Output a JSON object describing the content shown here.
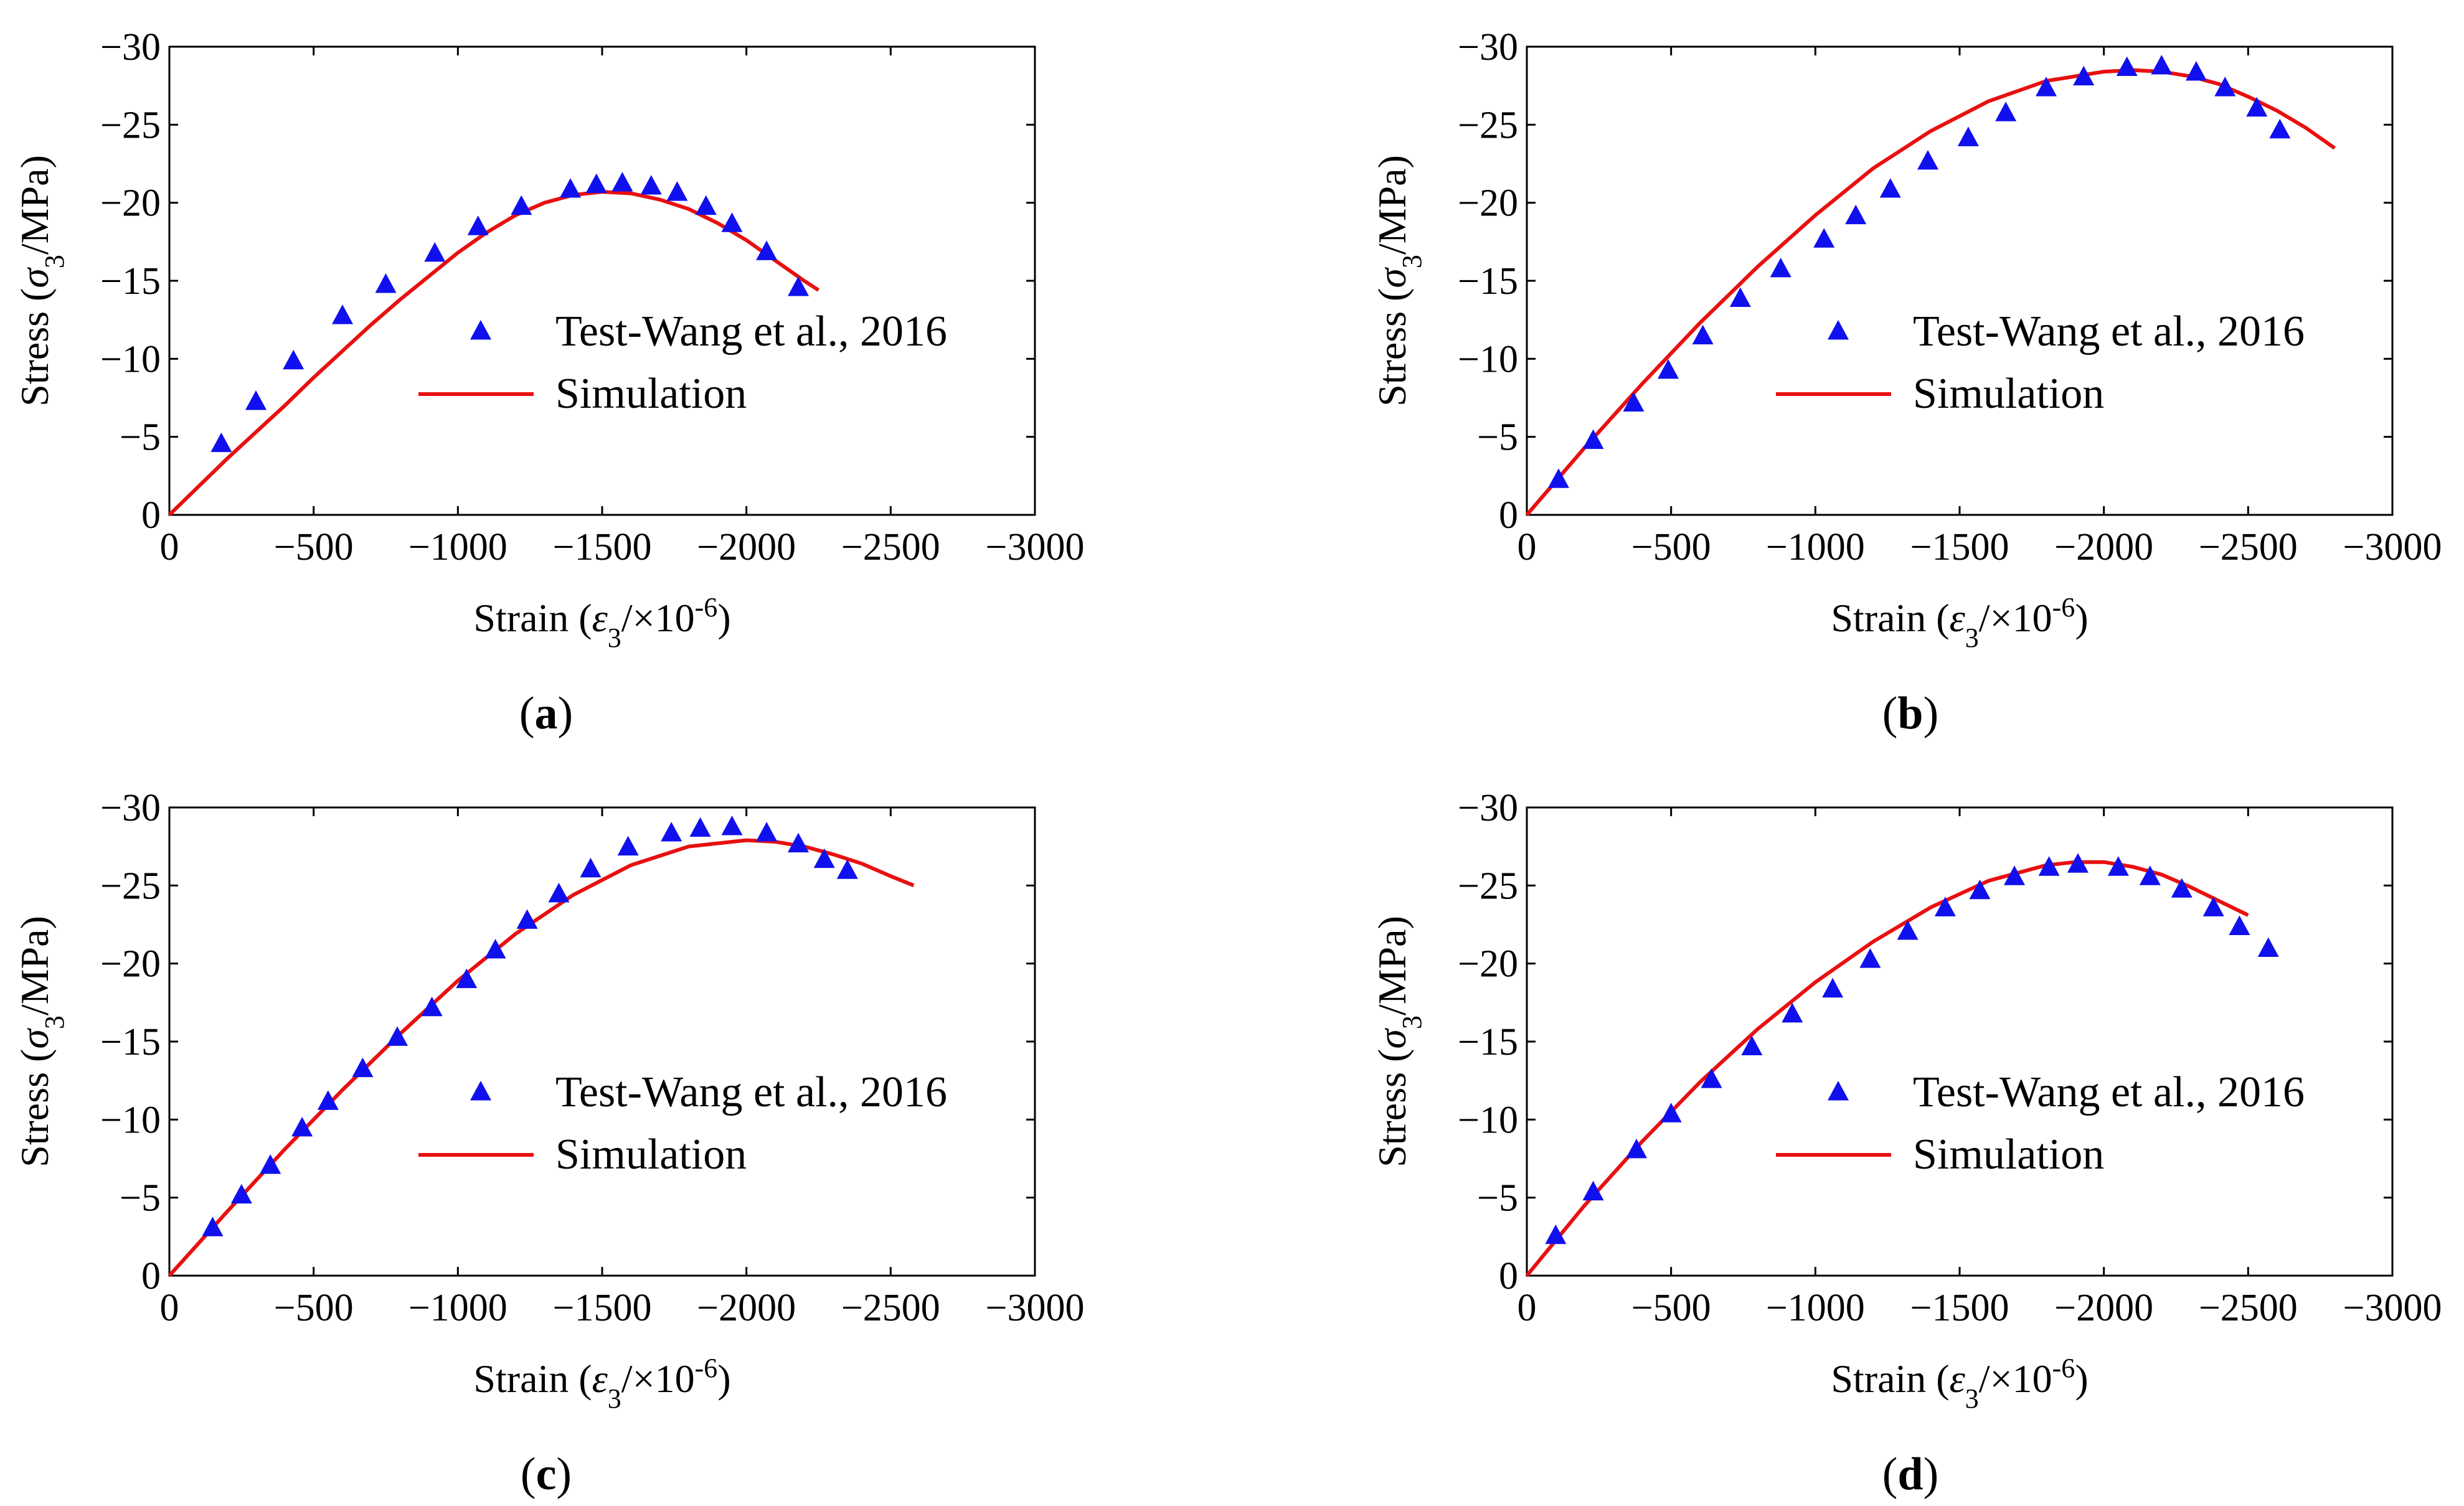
{
  "figure": {
    "legend_test_label": "Test-Wang et al., 2016",
    "legend_sim_label": "Simulation",
    "x_axis_title": "Strain (ε3/×10-6)",
    "y_axis_title": "Stress (σ3/MPa)",
    "colors": {
      "test": "#1010ee",
      "simulation": "#e81010",
      "axis": "#000000"
    }
  },
  "chart_data": [
    {
      "type": "scatter",
      "panel": "(a)",
      "panel_letter": "a",
      "xlabel": "Strain (ε3/×10-6)",
      "ylabel": "Stress (σ3/MPa)",
      "xlim": [
        0,
        -3000
      ],
      "ylim": [
        0,
        -30
      ],
      "xticks": [
        0,
        -500,
        -1000,
        -1500,
        -2000,
        -2500,
        -3000
      ],
      "yticks": [
        0,
        -5,
        -10,
        -15,
        -20,
        -25,
        -30
      ],
      "xtick_labels": [
        "0",
        "−500",
        "−1000",
        "−1500",
        "−2000",
        "−2500",
        "−3000"
      ],
      "ytick_labels": [
        "0",
        "−5",
        "−10",
        "−15",
        "−20",
        "−25",
        "−30"
      ],
      "legend": "lower-right",
      "series": [
        {
          "name": "Test-Wang et al., 2016",
          "marker": "triangle",
          "x": [
            -180,
            -300,
            -430,
            -600,
            -750,
            -920,
            -1070,
            -1220,
            -1390,
            -1480,
            -1570,
            -1670,
            -1760,
            -1860,
            -1950,
            -2070,
            -2180
          ],
          "y": [
            -4.6,
            -7.3,
            -9.9,
            -12.8,
            -14.8,
            -16.8,
            -18.5,
            -19.8,
            -20.9,
            -21.2,
            -21.3,
            -21.1,
            -20.7,
            -19.8,
            -18.7,
            -16.9,
            -14.6
          ]
        },
        {
          "name": "Simulation",
          "marker": "line",
          "x": [
            0,
            -100,
            -200,
            -300,
            -400,
            -500,
            -600,
            -700,
            -800,
            -900,
            -1000,
            -1100,
            -1200,
            -1300,
            -1400,
            -1500,
            -1600,
            -1700,
            -1800,
            -1900,
            -2000,
            -2100,
            -2200,
            -2250
          ],
          "y": [
            0,
            -1.8,
            -3.6,
            -5.3,
            -7.0,
            -8.8,
            -10.5,
            -12.2,
            -13.8,
            -15.3,
            -16.8,
            -18.1,
            -19.2,
            -20.0,
            -20.5,
            -20.7,
            -20.6,
            -20.2,
            -19.6,
            -18.7,
            -17.6,
            -16.3,
            -15.0,
            -14.4
          ]
        }
      ]
    },
    {
      "type": "scatter",
      "panel": "(b)",
      "panel_letter": "b",
      "xlabel": "Strain (ε3/×10-6)",
      "ylabel": "Stress (σ3/MPa)",
      "xlim": [
        0,
        -3000
      ],
      "ylim": [
        0,
        -30
      ],
      "xticks": [
        0,
        -500,
        -1000,
        -1500,
        -2000,
        -2500,
        -3000
      ],
      "yticks": [
        0,
        -5,
        -10,
        -15,
        -20,
        -25,
        -30
      ],
      "xtick_labels": [
        "0",
        "−500",
        "−1000",
        "−1500",
        "−2000",
        "−2500",
        "−3000"
      ],
      "ytick_labels": [
        "0",
        "−5",
        "−10",
        "−15",
        "−20",
        "−25",
        "−30"
      ],
      "legend": "lower-right",
      "series": [
        {
          "name": "Test-Wang et al., 2016",
          "marker": "triangle",
          "x": [
            -110,
            -230,
            -370,
            -490,
            -610,
            -740,
            -880,
            -1030,
            -1140,
            -1260,
            -1390,
            -1530,
            -1660,
            -1800,
            -1930,
            -2080,
            -2200,
            -2320,
            -2420,
            -2530,
            -2610
          ],
          "y": [
            -2.3,
            -4.8,
            -7.2,
            -9.3,
            -11.5,
            -13.9,
            -15.8,
            -17.7,
            -19.2,
            -20.9,
            -22.7,
            -24.2,
            -25.8,
            -27.4,
            -28.1,
            -28.7,
            -28.8,
            -28.4,
            -27.4,
            -26.1,
            -24.7
          ]
        },
        {
          "name": "Simulation",
          "marker": "line",
          "x": [
            0,
            -200,
            -400,
            -600,
            -800,
            -1000,
            -1200,
            -1400,
            -1600,
            -1800,
            -2000,
            -2100,
            -2200,
            -2300,
            -2400,
            -2500,
            -2600,
            -2700,
            -2800
          ],
          "y": [
            0,
            -4.3,
            -8.4,
            -12.3,
            -15.9,
            -19.2,
            -22.2,
            -24.6,
            -26.5,
            -27.8,
            -28.4,
            -28.5,
            -28.4,
            -28.1,
            -27.6,
            -26.8,
            -25.9,
            -24.8,
            -23.5
          ]
        }
      ]
    },
    {
      "type": "scatter",
      "panel": "(c)",
      "panel_letter": "c",
      "xlabel": "Strain (ε3/×10-6)",
      "ylabel": "Stress (σ3/MPa)",
      "xlim": [
        0,
        -3000
      ],
      "ylim": [
        0,
        -30
      ],
      "xticks": [
        0,
        -500,
        -1000,
        -1500,
        -2000,
        -2500,
        -3000
      ],
      "yticks": [
        0,
        -5,
        -10,
        -15,
        -20,
        -25,
        -30
      ],
      "xtick_labels": [
        "0",
        "−500",
        "−1000",
        "−1500",
        "−2000",
        "−2500",
        "−3000"
      ],
      "ytick_labels": [
        "0",
        "−5",
        "−10",
        "−15",
        "−20",
        "−25",
        "−30"
      ],
      "legend": "lower-right",
      "series": [
        {
          "name": "Test-Wang et al., 2016",
          "marker": "triangle",
          "x": [
            -150,
            -250,
            -350,
            -460,
            -550,
            -670,
            -790,
            -910,
            -1030,
            -1130,
            -1240,
            -1350,
            -1460,
            -1590,
            -1740,
            -1840,
            -1950,
            -2070,
            -2180,
            -2270,
            -2350
          ],
          "y": [
            -3.1,
            -5.2,
            -7.1,
            -9.5,
            -11.2,
            -13.3,
            -15.3,
            -17.2,
            -19.0,
            -20.9,
            -22.8,
            -24.5,
            -26.1,
            -27.5,
            -28.4,
            -28.7,
            -28.8,
            -28.4,
            -27.7,
            -26.7,
            -26.0
          ]
        },
        {
          "name": "Simulation",
          "marker": "line",
          "x": [
            0,
            -200,
            -400,
            -600,
            -800,
            -1000,
            -1200,
            -1400,
            -1600,
            -1800,
            -2000,
            -2100,
            -2200,
            -2300,
            -2400,
            -2500,
            -2580
          ],
          "y": [
            0,
            -4.1,
            -8.1,
            -11.9,
            -15.5,
            -18.9,
            -21.9,
            -24.4,
            -26.3,
            -27.5,
            -27.9,
            -27.8,
            -27.5,
            -27.0,
            -26.4,
            -25.6,
            -25.0
          ]
        }
      ]
    },
    {
      "type": "scatter",
      "panel": "(d)",
      "panel_letter": "d",
      "xlabel": "Strain (ε3/×10-6)",
      "ylabel": "Stress (σ3/MPa)",
      "xlim": [
        0,
        -3000
      ],
      "ylim": [
        0,
        -30
      ],
      "xticks": [
        0,
        -500,
        -1000,
        -1500,
        -2000,
        -2500,
        -3000
      ],
      "yticks": [
        0,
        -5,
        -10,
        -15,
        -20,
        -25,
        -30
      ],
      "xtick_labels": [
        "0",
        "−500",
        "−1000",
        "−1500",
        "−2000",
        "−2500",
        "−3000"
      ],
      "ytick_labels": [
        "0",
        "−5",
        "−10",
        "−15",
        "−20",
        "−25",
        "−30"
      ],
      "legend": "lower-right",
      "series": [
        {
          "name": "Test-Wang et al., 2016",
          "marker": "triangle",
          "x": [
            -100,
            -230,
            -380,
            -500,
            -640,
            -780,
            -920,
            -1060,
            -1190,
            -1320,
            -1450,
            -1570,
            -1690,
            -1810,
            -1910,
            -2050,
            -2160,
            -2270,
            -2380,
            -2470,
            -2570
          ],
          "y": [
            -2.6,
            -5.4,
            -8.1,
            -10.4,
            -12.6,
            -14.7,
            -16.8,
            -18.4,
            -20.3,
            -22.1,
            -23.6,
            -24.7,
            -25.6,
            -26.2,
            -26.4,
            -26.2,
            -25.6,
            -24.8,
            -23.6,
            -22.4,
            -21.0
          ]
        },
        {
          "name": "Simulation",
          "marker": "line",
          "x": [
            0,
            -200,
            -400,
            -600,
            -800,
            -1000,
            -1200,
            -1400,
            -1600,
            -1800,
            -1900,
            -2000,
            -2100,
            -2200,
            -2300,
            -2400,
            -2500
          ],
          "y": [
            0,
            -4.5,
            -8.6,
            -12.4,
            -15.8,
            -18.8,
            -21.4,
            -23.6,
            -25.3,
            -26.3,
            -26.5,
            -26.5,
            -26.2,
            -25.7,
            -24.9,
            -24.0,
            -23.1
          ]
        }
      ]
    }
  ]
}
